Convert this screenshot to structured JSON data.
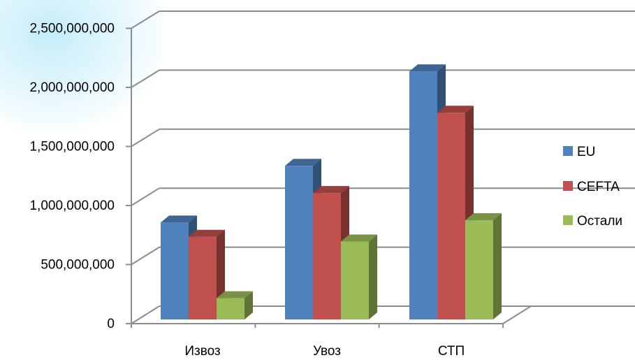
{
  "chart_data": {
    "type": "bar",
    "title": "",
    "xlabel": "",
    "ylabel": "",
    "categories": [
      "Извоз",
      "Увоз",
      "СТП"
    ],
    "series": [
      {
        "name": "EU",
        "values": [
          820000000,
          1300000000,
          2100000000
        ],
        "color": "#4F81BD"
      },
      {
        "name": "CEFTA",
        "values": [
          700000000,
          1070000000,
          1750000000
        ],
        "color": "#C0504D"
      },
      {
        "name": "Остали",
        "values": [
          180000000,
          660000000,
          840000000
        ],
        "color": "#9BBB59"
      }
    ],
    "ylim": [
      0,
      2500000000
    ],
    "yticks": [
      "0",
      "500,000,000",
      "1,000,000,000",
      "1,500,000,000",
      "2,000,000,000",
      "2,500,000,000"
    ],
    "grid": true,
    "legend": "right",
    "style": "3d-clustered-column"
  }
}
